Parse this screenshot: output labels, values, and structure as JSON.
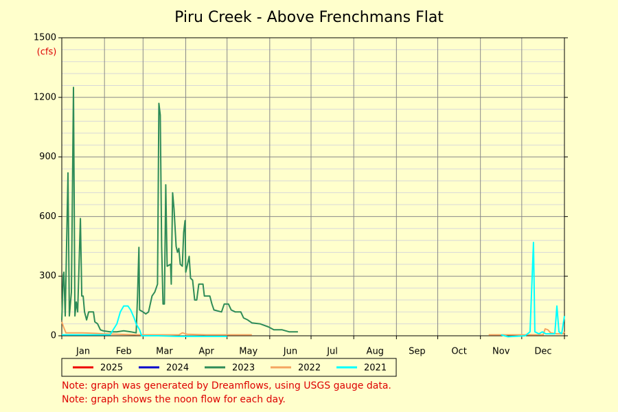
{
  "chart_data": {
    "type": "line",
    "title": "Piru Creek - Above Frenchmans Flat",
    "y_unit": "(cfs)",
    "xlim": [
      1,
      366
    ],
    "xticks": [
      1,
      32,
      60,
      91,
      121,
      152,
      182,
      213,
      244,
      274,
      305,
      335,
      366
    ],
    "categories": [
      "Jan",
      "Feb",
      "Mar",
      "Apr",
      "May",
      "Jun",
      "Jul",
      "Aug",
      "Sep",
      "Oct",
      "Nov",
      "Dec"
    ],
    "ylim": [
      0,
      1500
    ],
    "yticks": [
      0,
      300,
      600,
      900,
      1200,
      1500
    ],
    "yminorticks": [
      60,
      120,
      180,
      240,
      360,
      420,
      480,
      540,
      660,
      720,
      780,
      840,
      960,
      1020,
      1080,
      1140,
      1260,
      1320,
      1380,
      1440
    ],
    "grid": true,
    "series": [
      {
        "name": "2025",
        "color": "#ee0000",
        "x": [],
        "values": []
      },
      {
        "name": "2024",
        "color": "#0000cc",
        "x": [],
        "values": []
      },
      {
        "name": "2023",
        "color": "#2e8b57",
        "x": [
          1,
          2,
          2.5,
          3.5,
          5.5,
          6.5,
          8,
          9.5,
          10.5,
          11.5,
          12.5,
          14.5,
          15.5,
          16.5,
          17.5,
          19,
          20.5,
          24,
          25,
          27,
          29,
          31,
          36,
          41,
          46,
          51,
          55,
          56,
          57,
          57.5,
          60,
          62,
          64,
          66.5,
          68.5,
          70.5,
          71.5,
          72.5,
          73.5,
          74.5,
          75.5,
          76.5,
          77.5,
          80,
          80.5,
          81.5,
          82.5,
          84,
          85,
          86,
          87,
          88.5,
          89.5,
          90.5,
          91,
          92,
          93.5,
          94.5,
          96,
          97.5,
          99,
          100.5,
          103.5,
          104.5,
          108.5,
          110,
          111.5,
          117,
          119,
          122,
          124,
          127,
          131,
          133,
          136,
          139,
          145,
          151,
          155,
          161,
          166,
          172.5
        ],
        "values": [
          80,
          300,
          320,
          100,
          820,
          100,
          220,
          1250,
          100,
          170,
          120,
          590,
          200,
          200,
          120,
          80,
          120,
          120,
          70,
          60,
          30,
          25,
          20,
          20,
          25,
          20,
          15,
          200,
          445,
          130,
          120,
          110,
          120,
          200,
          220,
          260,
          1170,
          1110,
          450,
          160,
          160,
          760,
          350,
          360,
          260,
          720,
          640,
          450,
          420,
          440,
          360,
          350,
          520,
          580,
          320,
          350,
          400,
          290,
          280,
          180,
          180,
          260,
          260,
          200,
          200,
          160,
          130,
          120,
          160,
          160,
          130,
          120,
          120,
          90,
          80,
          65,
          60,
          45,
          30,
          30,
          20,
          20
        ]
      },
      {
        "name": "2022",
        "color": "#f4a460",
        "x": [
          1,
          2.5,
          4,
          16,
          26,
          31,
          56,
          86,
          88.5,
          92,
          106,
          139,
          null,
          311,
          338,
          350.5,
          352,
          354,
          356,
          360.5,
          365,
          366
        ],
        "values": [
          70,
          40,
          15,
          15,
          12,
          10,
          5,
          5,
          15,
          8,
          5,
          5,
          null,
          5,
          5,
          5,
          35,
          30,
          15,
          10,
          10,
          20
        ]
      },
      {
        "name": "2021",
        "color": "#00ffff",
        "x": [
          1,
          36,
          41,
          43.5,
          46,
          49,
          51,
          53.5,
          55,
          57.5,
          59,
          71,
          86,
          121,
          null,
          320,
          325,
          337.5,
          341,
          343.5,
          344.5,
          347.5,
          350,
          352.5,
          359,
          360.5,
          362,
          364,
          366
        ],
        "values": [
          5,
          5,
          60,
          120,
          150,
          150,
          130,
          90,
          60,
          30,
          0,
          0,
          -3,
          -3,
          null,
          5,
          -5,
          0,
          20,
          470,
          20,
          10,
          20,
          10,
          10,
          150,
          20,
          10,
          100
        ]
      }
    ],
    "notes": [
      "Note: graph was generated by Dreamflows, using USGS gauge data.",
      "Note: graph shows the noon flow for each day."
    ]
  }
}
